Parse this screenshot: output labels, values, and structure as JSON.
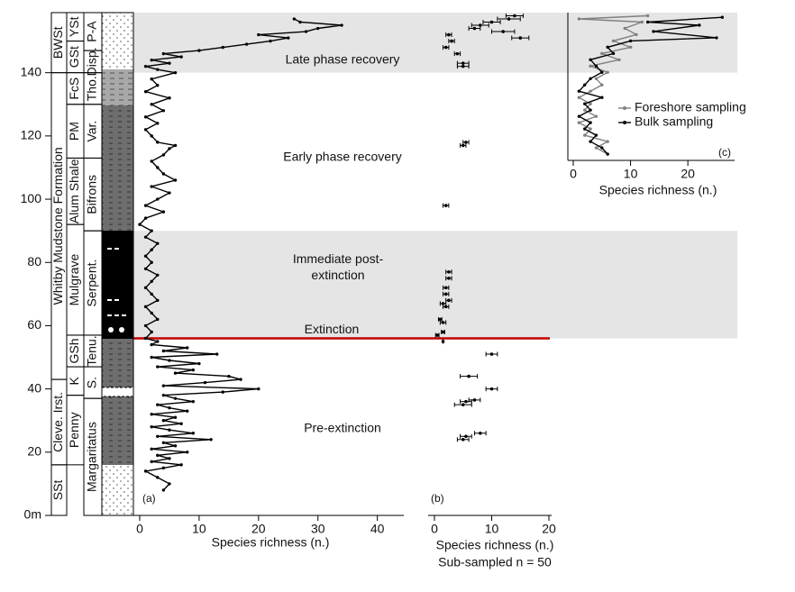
{
  "chart_data": [
    {
      "type": "line",
      "panel": "(a)",
      "xlabel": "Species richness (n.)",
      "color": "#000000",
      "xlim": [
        0,
        44
      ],
      "xticks": [
        0,
        10,
        20,
        30,
        40
      ],
      "ylim": [
        0,
        159
      ],
      "yticks": [
        {
          "value": 0,
          "label": "0m"
        },
        20,
        40,
        60,
        80,
        100,
        120,
        140
      ],
      "heights": [
        8,
        10,
        12,
        14,
        15,
        16,
        17,
        18,
        19,
        20,
        21,
        22,
        23,
        24,
        25,
        26,
        27,
        28,
        29,
        30,
        31,
        32,
        33,
        34,
        35,
        36,
        37,
        38,
        39,
        40,
        41,
        42,
        43,
        44,
        45,
        46,
        47,
        48,
        49,
        50,
        51,
        52,
        53,
        54,
        55,
        56,
        58,
        60,
        62,
        64,
        66,
        68,
        70,
        72,
        74,
        76,
        78,
        80,
        82,
        84,
        86,
        88,
        90,
        92,
        94,
        96,
        98,
        100,
        102,
        104,
        106,
        108,
        110,
        112,
        114,
        116,
        117,
        118,
        120,
        122,
        124,
        126,
        128,
        130,
        132,
        134,
        136,
        138,
        140,
        141,
        142,
        143,
        144,
        145,
        146,
        147,
        148,
        149,
        150,
        151,
        152,
        153,
        154,
        155,
        156,
        157
      ],
      "values": [
        4,
        5,
        3,
        1,
        4,
        7,
        2,
        5,
        3,
        8,
        2,
        6,
        4,
        12,
        3,
        9,
        5,
        2,
        7,
        4,
        6,
        2,
        8,
        5,
        3,
        9,
        6,
        4,
        14,
        20,
        4,
        11,
        17,
        15,
        6,
        9,
        3,
        10,
        5,
        2,
        13,
        4,
        8,
        2,
        3,
        1,
        2,
        1,
        3,
        2,
        1,
        3,
        2,
        1,
        2,
        3,
        1,
        2,
        1,
        2,
        3,
        1,
        2,
        0,
        1,
        4,
        1,
        3,
        5,
        2,
        6,
        4,
        3,
        2,
        4,
        5,
        6,
        3,
        2,
        1,
        3,
        1,
        4,
        2,
        5,
        1,
        3,
        2,
        6,
        3,
        1,
        5,
        2,
        7,
        4,
        10,
        14,
        18,
        22,
        25,
        20,
        28,
        30,
        34,
        27,
        26
      ]
    },
    {
      "type": "errorbar",
      "panel": "(b)",
      "xlabel": "Species richness (n.)",
      "subtitle": "Sub-sampled n = 50",
      "color": "#000000",
      "xlim": [
        0,
        20
      ],
      "xticks": [
        0,
        10,
        20
      ],
      "ylim": [
        0,
        159
      ],
      "heights": [
        24,
        25,
        26,
        35,
        36,
        36.5,
        40,
        44,
        51,
        55,
        57,
        58,
        61,
        62,
        66,
        67,
        68,
        70,
        72,
        75,
        77,
        98,
        117,
        118,
        142,
        143,
        146,
        148,
        150,
        151,
        152,
        153,
        154,
        155,
        156,
        157,
        158
      ],
      "values": [
        5,
        5.5,
        8,
        5,
        5.5,
        7,
        10,
        6,
        10,
        1.5,
        0.5,
        1.5,
        1.5,
        1,
        2,
        1.5,
        2.5,
        2,
        2,
        2.5,
        2.5,
        2,
        5,
        5.5,
        5,
        5,
        4,
        2,
        3,
        15,
        2.5,
        12,
        7,
        8,
        10,
        13,
        14
      ],
      "errors": [
        1,
        1,
        1,
        1.5,
        1,
        1,
        1,
        1.5,
        1,
        0,
        0.3,
        0.3,
        0.5,
        0.3,
        0.5,
        0.5,
        0.5,
        0.5,
        0.5,
        0.5,
        0.5,
        0.5,
        0.5,
        0.5,
        1,
        1,
        0.5,
        0.5,
        0.5,
        1.5,
        0.5,
        2,
        1,
        1.5,
        1.5,
        2,
        1.5
      ]
    },
    {
      "type": "line",
      "panel": "(c)",
      "xlabel": "Species richness (n.)",
      "legend": "upper right",
      "xlim": [
        0,
        28
      ],
      "xticks": [
        0,
        10,
        20
      ],
      "ylim": [
        112,
        159
      ],
      "series": [
        {
          "name": "Foreshore sampling",
          "color": "#808080",
          "heights": [
            114,
            116,
            118,
            120,
            122,
            124,
            126,
            128,
            130,
            132,
            134,
            136,
            138,
            140,
            142,
            144,
            146,
            148,
            150,
            152,
            154,
            156,
            157,
            158
          ],
          "values": [
            6,
            4,
            6,
            2,
            3,
            1,
            4,
            2,
            3,
            1,
            3,
            5,
            4,
            6,
            3,
            8,
            5,
            10,
            7,
            11,
            9,
            12,
            1,
            13
          ]
        },
        {
          "name": "Bulk sampling",
          "color": "#000000",
          "heights": [
            114,
            116,
            118,
            120,
            122,
            124,
            126,
            128,
            130,
            132,
            134,
            136,
            138,
            140,
            142,
            144,
            146,
            148,
            150,
            151,
            153,
            155,
            156,
            157.5
          ],
          "values": [
            6,
            5,
            3,
            4,
            2,
            3,
            1,
            3,
            2,
            5,
            1,
            2,
            3,
            5,
            4,
            3,
            7,
            6,
            10,
            25,
            14,
            22,
            13,
            26
          ]
        }
      ]
    }
  ],
  "zones": [
    {
      "label": "Late phase recovery",
      "range": [
        140,
        159
      ],
      "shaded": true
    },
    {
      "label": "Early phase recovery",
      "range": [
        90,
        140
      ],
      "shaded": false
    },
    {
      "label": "Immediate post-extinction",
      "range": [
        56,
        90
      ],
      "shaded": true
    },
    {
      "label": "Pre-extinction",
      "range": [
        0,
        56
      ],
      "shaded": false
    }
  ],
  "extinction": {
    "label": "Extinction",
    "level": 56,
    "color": "#c00000"
  },
  "stratigraphy": {
    "formations": [
      {
        "label": "SSt",
        "range": [
          0,
          16
        ]
      },
      {
        "label": "Cleve. Irst.",
        "range": [
          16,
          43
        ]
      },
      {
        "label": "Whitby Mudstone Formation",
        "range": [
          43,
          140
        ]
      },
      {
        "label": "BWSt",
        "range": [
          140,
          159
        ]
      }
    ],
    "members": [
      {
        "label": "Penny",
        "range": [
          16,
          38
        ]
      },
      {
        "label": "K",
        "range": [
          38,
          47
        ]
      },
      {
        "label": "GSh",
        "range": [
          47,
          57
        ]
      },
      {
        "label": "Mulgrave",
        "range": [
          57,
          92
        ]
      },
      {
        "label": "Alum Shale",
        "range": [
          92,
          113
        ]
      },
      {
        "label": "PM",
        "range": [
          113,
          130
        ]
      },
      {
        "label": "FcS",
        "range": [
          130,
          140
        ]
      },
      {
        "label": "GSt",
        "range": [
          140,
          150
        ]
      },
      {
        "label": "YSt",
        "range": [
          150,
          159
        ]
      }
    ],
    "zones": [
      {
        "label": "Margaritatus",
        "range": [
          0,
          37
        ]
      },
      {
        "label": "S.",
        "range": [
          37,
          47
        ]
      },
      {
        "label": "Tenu.",
        "range": [
          47,
          57
        ]
      },
      {
        "label": "Serpent.",
        "range": [
          57,
          90
        ]
      },
      {
        "label": "Bifrons",
        "range": [
          90,
          113
        ]
      },
      {
        "label": "Var.",
        "range": [
          113,
          130
        ]
      },
      {
        "label": "Tho.",
        "range": [
          130,
          140
        ]
      },
      {
        "label": "Disp.",
        "range": [
          140,
          147
        ]
      },
      {
        "label": "P-A",
        "range": [
          147,
          159
        ]
      }
    ]
  }
}
